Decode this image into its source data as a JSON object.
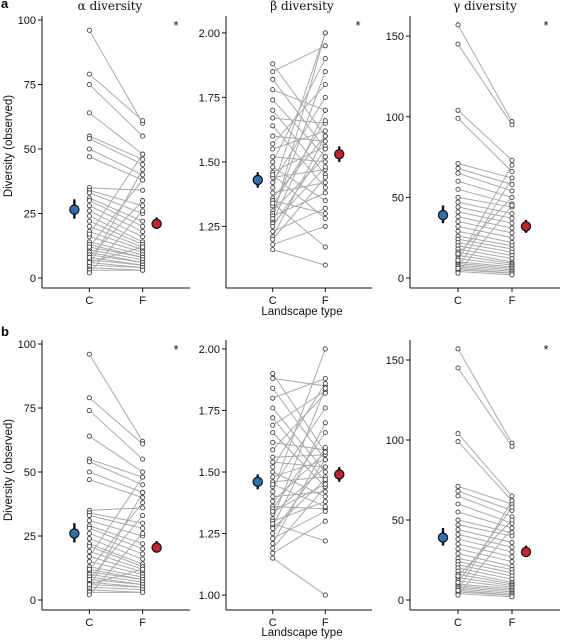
{
  "panel_labels": [
    "a",
    "b"
  ],
  "titles": [
    "α diversity",
    "β diversity",
    "γ diversity"
  ],
  "significance_mark": "*",
  "ylabel": "Diversity (observed)",
  "xlabel": "Landscape type",
  "colors": {
    "C": "#2f6fad",
    "F": "#c0242f",
    "lines": "#aaaaaa",
    "points_edge": "#444444"
  },
  "chart_data": [
    {
      "type": "scatter",
      "row": "a",
      "title": "α diversity",
      "categories": [
        "C",
        "F"
      ],
      "ylim": [
        0,
        100
      ],
      "yticks": [
        0,
        25,
        50,
        75,
        100
      ],
      "significant": true,
      "means": {
        "C": {
          "value": 26.5,
          "low": 23.0,
          "high": 30.5
        },
        "F": {
          "value": 21.0,
          "low": 19.0,
          "high": 23.5
        }
      },
      "paired": [
        [
          96,
          60
        ],
        [
          79,
          61
        ],
        [
          75,
          55
        ],
        [
          64,
          48
        ],
        [
          55,
          46
        ],
        [
          54,
          44
        ],
        [
          50,
          40
        ],
        [
          47,
          38
        ],
        [
          35,
          34
        ],
        [
          34,
          28
        ],
        [
          33,
          25
        ],
        [
          31,
          22
        ],
        [
          30,
          20
        ],
        [
          28,
          18
        ],
        [
          26,
          16
        ],
        [
          24,
          14
        ],
        [
          22,
          13
        ],
        [
          20,
          12
        ],
        [
          18,
          11
        ],
        [
          16,
          10
        ],
        [
          14,
          9
        ],
        [
          13,
          8
        ],
        [
          12,
          8
        ],
        [
          11,
          7
        ],
        [
          10,
          6
        ],
        [
          9,
          6
        ],
        [
          8,
          5
        ],
        [
          7,
          5
        ],
        [
          6,
          4
        ],
        [
          5,
          4
        ],
        [
          4,
          3
        ],
        [
          3,
          3
        ],
        [
          5,
          42
        ],
        [
          8,
          30
        ],
        [
          12,
          38
        ],
        [
          17,
          48
        ],
        [
          2,
          26
        ],
        [
          6,
          12
        ]
      ]
    },
    {
      "type": "scatter",
      "row": "a",
      "title": "β diversity",
      "categories": [
        "C",
        "F"
      ],
      "ylim": [
        1.05,
        2.05
      ],
      "yticks": [
        1.25,
        1.5,
        1.75,
        2.0
      ],
      "significant": true,
      "means": {
        "C": {
          "value": 1.43,
          "low": 1.4,
          "high": 1.46
        },
        "F": {
          "value": 1.53,
          "low": 1.5,
          "high": 1.56
        }
      },
      "paired": [
        [
          1.88,
          1.6
        ],
        [
          1.85,
          1.95
        ],
        [
          1.82,
          1.55
        ],
        [
          1.78,
          1.7
        ],
        [
          1.74,
          1.52
        ],
        [
          1.7,
          1.45
        ],
        [
          1.67,
          1.65
        ],
        [
          1.64,
          1.4
        ],
        [
          1.6,
          1.58
        ],
        [
          1.57,
          1.8
        ],
        [
          1.55,
          1.62
        ],
        [
          1.52,
          1.5
        ],
        [
          1.5,
          1.9
        ],
        [
          1.48,
          1.35
        ],
        [
          1.46,
          1.56
        ],
        [
          1.44,
          1.47
        ],
        [
          1.42,
          1.75
        ],
        [
          1.4,
          2.0
        ],
        [
          1.38,
          1.42
        ],
        [
          1.36,
          1.6
        ],
        [
          1.35,
          1.3
        ],
        [
          1.33,
          1.66
        ],
        [
          1.31,
          1.52
        ],
        [
          1.3,
          1.85
        ],
        [
          1.29,
          1.38
        ],
        [
          1.27,
          1.7
        ],
        [
          1.26,
          1.48
        ],
        [
          1.25,
          1.55
        ],
        [
          1.23,
          1.32
        ],
        [
          1.21,
          1.6
        ],
        [
          1.2,
          1.44
        ],
        [
          1.18,
          1.25
        ],
        [
          1.16,
          1.1
        ],
        [
          1.28,
          2.0
        ],
        [
          1.34,
          1.17
        ],
        [
          1.45,
          1.28
        ]
      ]
    },
    {
      "type": "scatter",
      "row": "a",
      "title": "γ diversity",
      "categories": [
        "C",
        "F"
      ],
      "ylim": [
        0,
        160
      ],
      "yticks": [
        0,
        50,
        100,
        150
      ],
      "significant": true,
      "means": {
        "C": {
          "value": 39,
          "low": 34,
          "high": 45
        },
        "F": {
          "value": 32,
          "low": 28,
          "high": 36
        }
      },
      "paired": [
        [
          157,
          97
        ],
        [
          145,
          95
        ],
        [
          104,
          73
        ],
        [
          99,
          66
        ],
        [
          71,
          62
        ],
        [
          68,
          58
        ],
        [
          65,
          54
        ],
        [
          60,
          50
        ],
        [
          55,
          46
        ],
        [
          50,
          44
        ],
        [
          47,
          40
        ],
        [
          44,
          37
        ],
        [
          41,
          34
        ],
        [
          38,
          31
        ],
        [
          35,
          28
        ],
        [
          32,
          25
        ],
        [
          29,
          22
        ],
        [
          26,
          20
        ],
        [
          24,
          18
        ],
        [
          22,
          16
        ],
        [
          20,
          14
        ],
        [
          18,
          12
        ],
        [
          16,
          10
        ],
        [
          14,
          9
        ],
        [
          12,
          8
        ],
        [
          10,
          7
        ],
        [
          9,
          6
        ],
        [
          8,
          5
        ],
        [
          7,
          4
        ],
        [
          6,
          3
        ],
        [
          5,
          3
        ],
        [
          4,
          2
        ],
        [
          3,
          45
        ],
        [
          6,
          62
        ],
        [
          11,
          70
        ],
        [
          15,
          50
        ]
      ]
    },
    {
      "type": "scatter",
      "row": "b",
      "title": "α diversity",
      "categories": [
        "C",
        "F"
      ],
      "ylim": [
        0,
        100
      ],
      "yticks": [
        0,
        25,
        50,
        75,
        100
      ],
      "significant": true,
      "means": {
        "C": {
          "value": 26,
          "low": 22.5,
          "high": 30
        },
        "F": {
          "value": 20.5,
          "low": 18.5,
          "high": 23
        }
      },
      "paired": [
        [
          96,
          62
        ],
        [
          79,
          61
        ],
        [
          74,
          55
        ],
        [
          64,
          50
        ],
        [
          55,
          48
        ],
        [
          54,
          45
        ],
        [
          50,
          42
        ],
        [
          47,
          40
        ],
        [
          35,
          36
        ],
        [
          34,
          30
        ],
        [
          33,
          28
        ],
        [
          31,
          25
        ],
        [
          29,
          22
        ],
        [
          28,
          20
        ],
        [
          26,
          18
        ],
        [
          24,
          16
        ],
        [
          22,
          14
        ],
        [
          21,
          13
        ],
        [
          19,
          12
        ],
        [
          17,
          11
        ],
        [
          15,
          10
        ],
        [
          13,
          9
        ],
        [
          12,
          8
        ],
        [
          11,
          8
        ],
        [
          10,
          7
        ],
        [
          9,
          6
        ],
        [
          8,
          6
        ],
        [
          7,
          5
        ],
        [
          6,
          5
        ],
        [
          5,
          4
        ],
        [
          4,
          3
        ],
        [
          3,
          3
        ],
        [
          5,
          42
        ],
        [
          8,
          33
        ],
        [
          12,
          38
        ],
        [
          17,
          48
        ],
        [
          2,
          26
        ],
        [
          6,
          12
        ]
      ]
    },
    {
      "type": "scatter",
      "row": "b",
      "title": "β diversity",
      "categories": [
        "C",
        "F"
      ],
      "ylim": [
        0.98,
        2.02
      ],
      "yticks": [
        1.0,
        1.25,
        1.5,
        1.75,
        2.0
      ],
      "significant": false,
      "means": {
        "C": {
          "value": 1.46,
          "low": 1.43,
          "high": 1.49
        },
        "F": {
          "value": 1.49,
          "low": 1.46,
          "high": 1.52
        }
      },
      "paired": [
        [
          1.9,
          1.58
        ],
        [
          1.88,
          1.85
        ],
        [
          1.84,
          1.55
        ],
        [
          1.8,
          1.88
        ],
        [
          1.76,
          1.5
        ],
        [
          1.72,
          1.46
        ],
        [
          1.69,
          1.83
        ],
        [
          1.66,
          1.44
        ],
        [
          1.62,
          1.59
        ],
        [
          1.59,
          1.82
        ],
        [
          1.56,
          1.57
        ],
        [
          1.54,
          1.52
        ],
        [
          1.52,
          1.86
        ],
        [
          1.5,
          1.4
        ],
        [
          1.48,
          1.55
        ],
        [
          1.46,
          1.48
        ],
        [
          1.44,
          1.76
        ],
        [
          1.42,
          2.0
        ],
        [
          1.4,
          1.42
        ],
        [
          1.38,
          1.58
        ],
        [
          1.36,
          1.35
        ],
        [
          1.35,
          1.66
        ],
        [
          1.33,
          1.52
        ],
        [
          1.31,
          1.84
        ],
        [
          1.3,
          1.38
        ],
        [
          1.28,
          1.7
        ],
        [
          1.27,
          1.47
        ],
        [
          1.25,
          1.55
        ],
        [
          1.23,
          1.34
        ],
        [
          1.21,
          1.6
        ],
        [
          1.19,
          1.44
        ],
        [
          1.17,
          1.3
        ],
        [
          1.15,
          1.0
        ],
        [
          1.29,
          1.22
        ],
        [
          1.34,
          1.45
        ],
        [
          1.45,
          1.36
        ]
      ]
    },
    {
      "type": "scatter",
      "row": "b",
      "title": "γ diversity",
      "categories": [
        "C",
        "F"
      ],
      "ylim": [
        0,
        160
      ],
      "yticks": [
        0,
        50,
        100,
        150
      ],
      "significant": true,
      "means": {
        "C": {
          "value": 39,
          "low": 34,
          "high": 45
        },
        "F": {
          "value": 30,
          "low": 27,
          "high": 34
        }
      },
      "paired": [
        [
          157,
          98
        ],
        [
          145,
          96
        ],
        [
          104,
          65
        ],
        [
          99,
          62
        ],
        [
          71,
          60
        ],
        [
          68,
          56
        ],
        [
          65,
          52
        ],
        [
          60,
          48
        ],
        [
          55,
          45
        ],
        [
          50,
          42
        ],
        [
          47,
          40
        ],
        [
          44,
          36
        ],
        [
          41,
          33
        ],
        [
          38,
          30
        ],
        [
          35,
          27
        ],
        [
          32,
          24
        ],
        [
          29,
          21
        ],
        [
          26,
          19
        ],
        [
          24,
          17
        ],
        [
          22,
          15
        ],
        [
          20,
          13
        ],
        [
          18,
          11
        ],
        [
          16,
          10
        ],
        [
          14,
          9
        ],
        [
          12,
          8
        ],
        [
          10,
          7
        ],
        [
          9,
          6
        ],
        [
          8,
          5
        ],
        [
          7,
          4
        ],
        [
          6,
          3
        ],
        [
          5,
          3
        ],
        [
          4,
          2
        ],
        [
          3,
          45
        ],
        [
          6,
          62
        ],
        [
          11,
          58
        ],
        [
          15,
          50
        ]
      ]
    }
  ]
}
